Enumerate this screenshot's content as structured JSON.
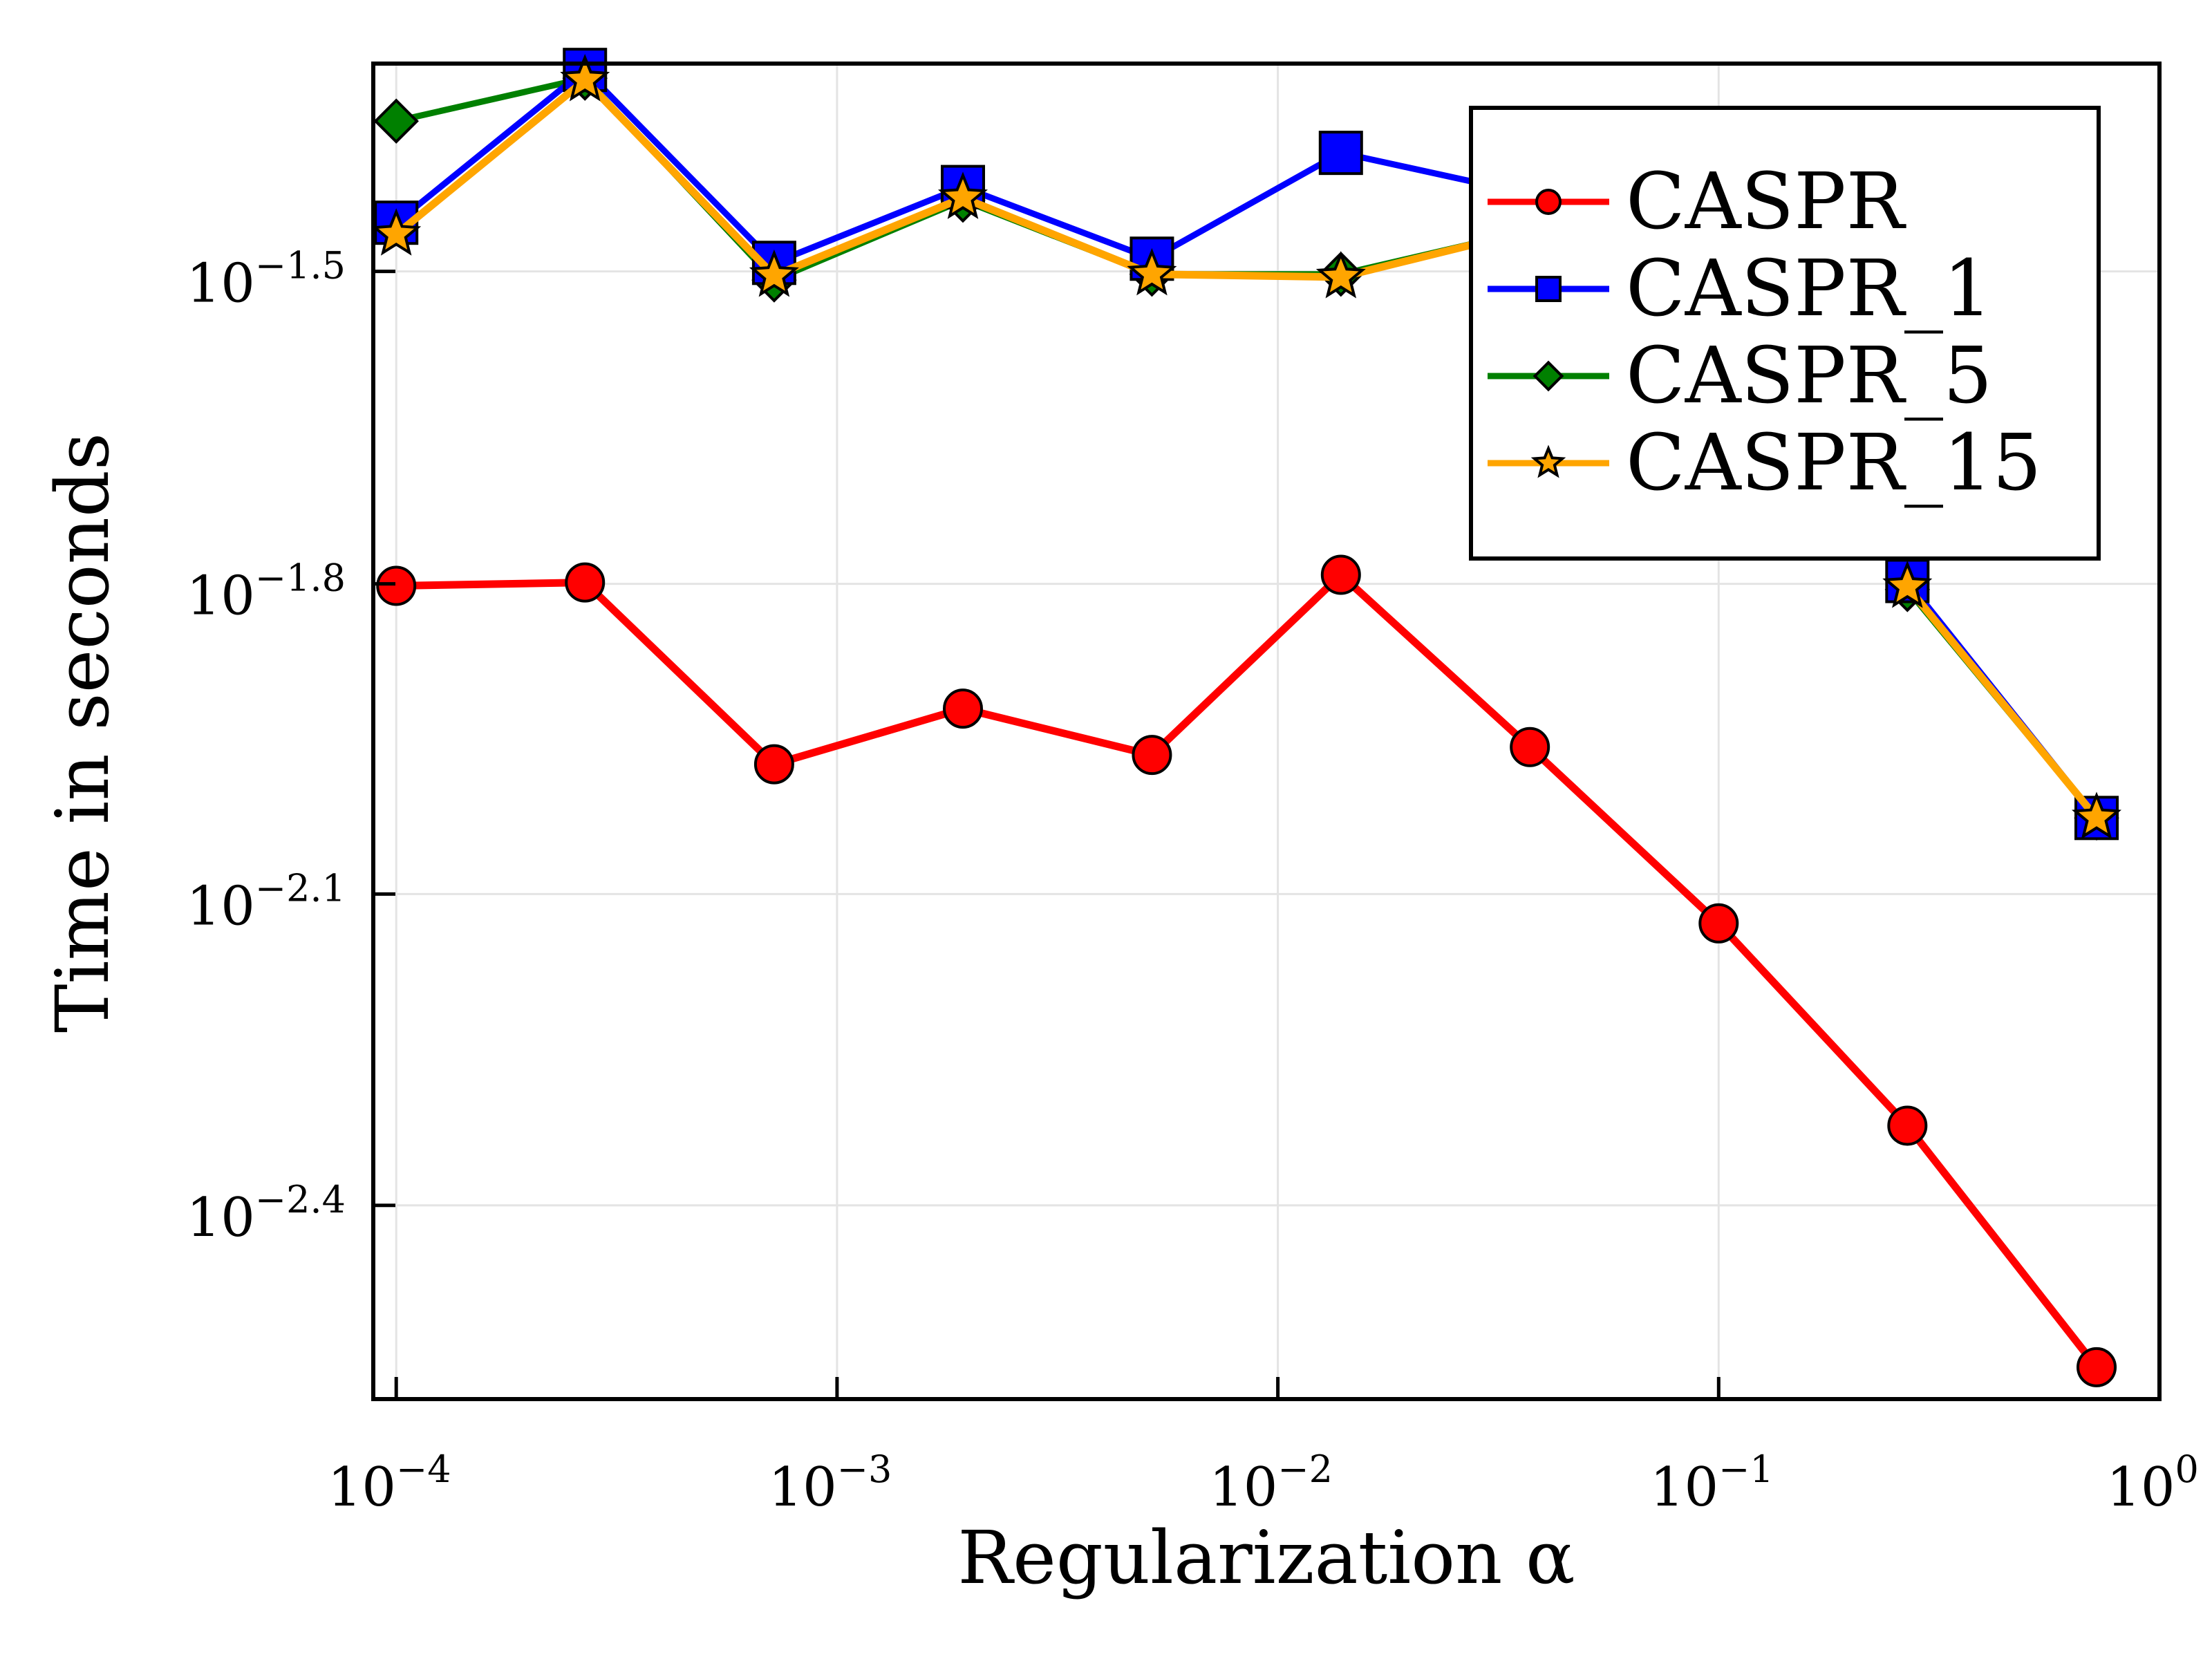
{
  "chart_data": {
    "type": "line",
    "xlabel": "Regularization α",
    "ylabel": "Time in seconds",
    "x_scale": "log10",
    "y_scale": "log10",
    "xlim": [
      8.87e-05,
      1.0
    ],
    "ylim": [
      0.00259,
      0.0501
    ],
    "grid": true,
    "legend_position": "top-right",
    "x_ticks": [
      {
        "base": "10",
        "exp": "−4",
        "value": 0.0001
      },
      {
        "base": "10",
        "exp": "−3",
        "value": 0.001
      },
      {
        "base": "10",
        "exp": "−2",
        "value": 0.01
      },
      {
        "base": "10",
        "exp": "−1",
        "value": 0.1
      },
      {
        "base": "10",
        "exp": "0",
        "value": 1
      }
    ],
    "y_ticks": [
      {
        "base": "10",
        "exp": "−1.5",
        "value": 0.0316
      },
      {
        "base": "10",
        "exp": "−1.8",
        "value": 0.0158
      },
      {
        "base": "10",
        "exp": "−2.1",
        "value": 0.00794
      },
      {
        "base": "10",
        "exp": "−2.4",
        "value": 0.00398
      }
    ],
    "x": [
      0.0001,
      0.000268,
      0.00072,
      0.00193,
      0.00518,
      0.0139,
      0.0373,
      0.1,
      0.268,
      0.72
    ],
    "series": [
      {
        "name": "CASPR",
        "color": "#ff0000",
        "marker": "circle",
        "values": [
          0.01573,
          0.01585,
          0.01059,
          0.01198,
          0.01081,
          0.01612,
          0.011,
          0.00744,
          0.00475,
          0.00278
        ]
      },
      {
        "name": "CASPR_1",
        "color": "#0000ff",
        "marker": "square",
        "values": [
          0.0352,
          0.0494,
          0.0322,
          0.0381,
          0.0325,
          0.0411,
          0.0375,
          null,
          0.0159,
          0.0094
        ]
      },
      {
        "name": "CASPR_5",
        "color": "#008000",
        "marker": "diamond",
        "values": [
          0.0441,
          0.0485,
          0.031,
          0.037,
          0.0314,
          0.0314,
          0.0346,
          null,
          0.0156,
          0.0094
        ]
      },
      {
        "name": "CASPR_15",
        "color": "#ffa500",
        "marker": "star",
        "values": [
          0.0343,
          0.0483,
          0.0313,
          0.0372,
          0.0314,
          0.0312,
          0.0346,
          null,
          0.0157,
          0.0094
        ]
      }
    ]
  }
}
